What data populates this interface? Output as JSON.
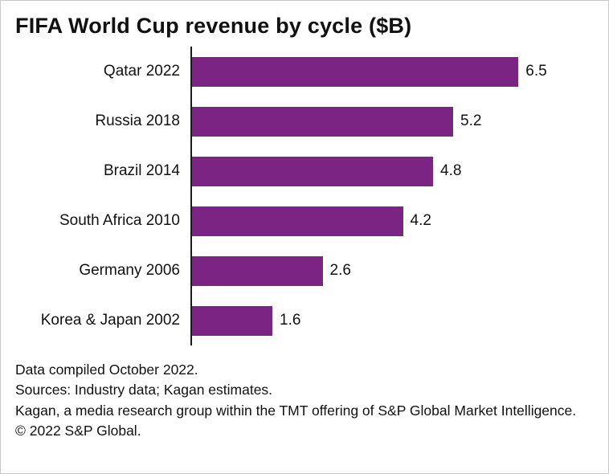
{
  "title": "FIFA World Cup revenue by cycle ($B)",
  "chart_data": {
    "type": "bar",
    "orientation": "horizontal",
    "title": "FIFA World Cup revenue by cycle ($B)",
    "categories": [
      "Qatar 2022",
      "Russia 2018",
      "Brazil 2014",
      "South Africa 2010",
      "Germany 2006",
      "Korea & Japan 2002"
    ],
    "values": [
      6.5,
      5.2,
      4.8,
      4.2,
      2.6,
      1.6
    ],
    "value_labels": [
      "6.5",
      "5.2",
      "4.8",
      "4.2",
      "2.6",
      "1.6"
    ],
    "xlabel": "",
    "ylabel": "",
    "xlim": [
      0,
      8
    ],
    "grid": false,
    "legend": false,
    "bar_color": "#7c2483"
  },
  "colors": {
    "bar": "#7c2483",
    "axis": "#1a1a1a",
    "text": "#111111"
  },
  "footer": {
    "lines": [
      "Data compiled October 2022.",
      "Sources: Industry data; Kagan estimates.",
      "Kagan, a media research group within the TMT offering of S&P Global Market Intelligence.",
      "© 2022 S&P Global."
    ]
  }
}
